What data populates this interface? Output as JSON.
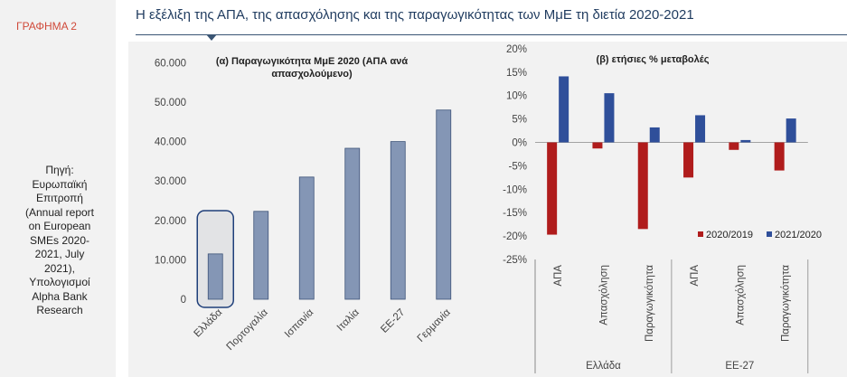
{
  "figure": {
    "label": "ΓΡΑΦΗΜΑ 2",
    "title": "Η εξέλιξη της ΑΠΑ, της απασχόλησης και της παραγωγικότητας των ΜμΕ τη διετία 2020-2021",
    "source_lines": [
      "Πηγή:",
      "Ευρωπαϊκή",
      "Επιτροπή",
      "(Annual report",
      "on European",
      "SMEs 2020-",
      "2021, July",
      "2021),",
      "Υπολογισμοί",
      "Alpha Bank",
      "Research"
    ]
  },
  "colors": {
    "accent_red": "#d04a3a",
    "title_blue": "#1f3b5f",
    "bar_a": "#8496b5",
    "bar_a_edge": "#3d5378",
    "s2019": "#b01c1c",
    "s2021": "#2f4f9a"
  },
  "chart_data": [
    {
      "type": "bar",
      "title_lines": [
        "(α) Παραγωγικότητα ΜμΕ 2020 (ΑΠΑ ανά",
        "απασχολούμενο)"
      ],
      "categories": [
        "Ελλάδα",
        "Πορτογαλία",
        "Ισπανία",
        "Ιταλία",
        "ΕΕ-27",
        "Γερμανία"
      ],
      "values": [
        11500,
        22300,
        31000,
        38300,
        40000,
        48000
      ],
      "highlight": "Ελλάδα",
      "ylim": [
        0,
        60000
      ],
      "yticks": [
        "0",
        "10.000",
        "20.000",
        "30.000",
        "40.000",
        "50.000",
        "60.000"
      ],
      "grid": false
    },
    {
      "type": "bar",
      "title": "(β) ετήσιες % μεταβολές",
      "groups": [
        {
          "name": "Ελλάδα",
          "categories": [
            "ΑΠΑ",
            "Απασχόληση",
            "Παραγωγικότητα"
          ]
        },
        {
          "name": "ΕΕ-27",
          "categories": [
            "ΑΠΑ",
            "Απασχόληση",
            "Παραγωγικότητα"
          ]
        }
      ],
      "series": [
        {
          "name": "2020/2019",
          "values": [
            -19.7,
            -1.3,
            -18.5,
            -7.5,
            -1.6,
            -6.0
          ]
        },
        {
          "name": "2021/2020",
          "values": [
            14.1,
            10.5,
            3.2,
            5.8,
            0.5,
            5.1
          ]
        }
      ],
      "ylim": [
        -25,
        20
      ],
      "yticks": [
        "-25%",
        "-20%",
        "-15%",
        "-10%",
        "-5%",
        "0%",
        "5%",
        "10%",
        "15%",
        "20%"
      ],
      "legend": "bottom-right",
      "grid": false
    }
  ]
}
